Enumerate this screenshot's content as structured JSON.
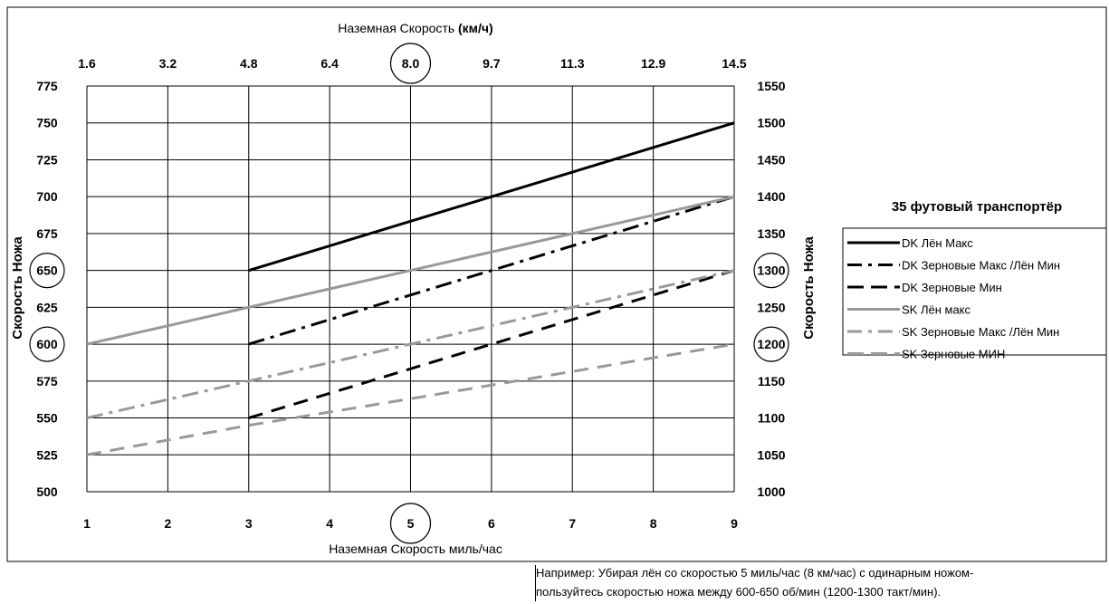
{
  "chart_data": {
    "type": "line",
    "legend_title": "35 футовый транспортёр",
    "x_top_label_normal": "Наземная  Скорость ",
    "x_top_label_bold": "(км/ч)",
    "xlabel": "Наземная Скорость миль/час",
    "ylabel_left": "Скорость Ножа",
    "ylabel_right": "Скорость Ножа",
    "x_ticks": [
      "1",
      "2",
      "3",
      "4",
      "5",
      "6",
      "7",
      "8",
      "9"
    ],
    "x_top_ticks": [
      "1.6",
      "3.2",
      "4.8",
      "6.4",
      "8.0",
      "9.7",
      "11.3",
      "12.9",
      "14.5"
    ],
    "y_ticks": [
      "500",
      "525",
      "550",
      "575",
      "600",
      "625",
      "650",
      "675",
      "700",
      "725",
      "750",
      "775"
    ],
    "y2_ticks": [
      "1000",
      "1050",
      "1100",
      "1150",
      "1200",
      "1250",
      "1300",
      "1350",
      "1400",
      "1450",
      "1500",
      "1550"
    ],
    "xlim": [
      1,
      9
    ],
    "ylim": [
      500,
      775
    ],
    "grid": true,
    "legend_position": "right",
    "highlight_top_tick": "8.0",
    "highlight_bottom_tick": "5",
    "highlight_y": [
      "650",
      "600"
    ],
    "highlight_y2": [
      "1300",
      "1200"
    ],
    "series": [
      {
        "name": "DK Лён Макс",
        "color": "#000000",
        "dash": "solid",
        "x": [
          3,
          9
        ],
        "y": [
          650,
          750
        ]
      },
      {
        "name": "DK Зерновые Макс /Лён Мин",
        "color": "#000000",
        "dash": "dashdot",
        "x": [
          3,
          9
        ],
        "y": [
          600,
          700
        ]
      },
      {
        "name": "DK Зерновые Мин",
        "color": "#000000",
        "dash": "dash",
        "x": [
          3,
          9
        ],
        "y": [
          550,
          650
        ]
      },
      {
        "name": "SK Лён макс",
        "color": "#999999",
        "dash": "solid",
        "x": [
          1,
          9
        ],
        "y": [
          600,
          700
        ]
      },
      {
        "name": "SK Зерновые Макс /Лён Мин",
        "color": "#999999",
        "dash": "dashdot",
        "x": [
          1,
          9
        ],
        "y": [
          550,
          650
        ]
      },
      {
        "name": "SK Зерновые МИН",
        "color": "#999999",
        "dash": "dash",
        "x": [
          1,
          3,
          5,
          9
        ],
        "y": [
          525,
          545,
          563,
          600
        ]
      }
    ]
  },
  "note": {
    "line1": "Например: Убирая лён со скоростью 5 миль/час (8 км/час) с одинарным ножом-",
    "line2": "пользуйтесь скоростью  ножа между 600-650 об/мин (1200-1300 такт/мин)."
  }
}
